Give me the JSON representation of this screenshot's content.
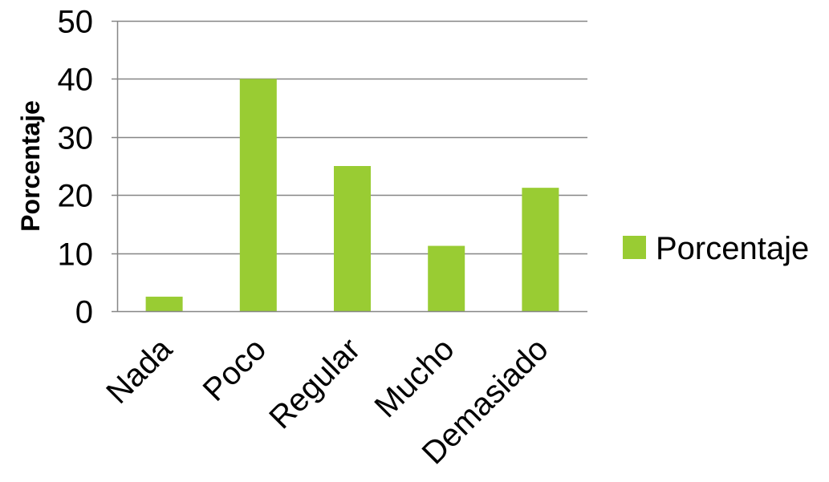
{
  "chart_data": {
    "type": "bar",
    "categories": [
      "Nada",
      "Poco",
      "Regular",
      "Mucho",
      "Demasiado"
    ],
    "series": [
      {
        "name": "Porcentaje",
        "values": [
          2.5,
          40,
          25,
          11.25,
          21.25
        ]
      }
    ],
    "title": "",
    "xlabel": "",
    "ylabel": "Porcentaje",
    "ylim": [
      0,
      50
    ],
    "yticks": [
      0,
      10,
      20,
      30,
      40,
      50
    ],
    "grid": true,
    "legend_position": "right",
    "colors": {
      "bar": "#99CC33",
      "grid": "#868686",
      "axis": "#868686"
    }
  }
}
